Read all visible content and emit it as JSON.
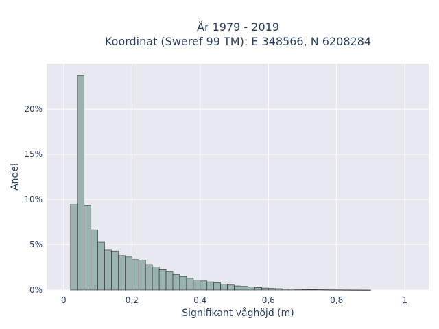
{
  "chart_data": {
    "type": "bar",
    "title_line1": "År 1979 - 2019",
    "title_line2": "Koordinat (Sweref 99 TM): E 348566, N 6208284",
    "xlabel": "Signifikant våghöjd (m)",
    "ylabel": "Andel",
    "xlim": [
      -0.05,
      1.07
    ],
    "ylim": [
      0,
      25
    ],
    "bin_width": 0.02,
    "bin_start": 0.0,
    "x_ticks": [
      0,
      0.2,
      0.4,
      0.6,
      0.8,
      1
    ],
    "x_tick_labels": [
      "0",
      "0,2",
      "0,4",
      "0,6",
      "0,8",
      "1"
    ],
    "y_ticks": [
      0,
      5,
      10,
      15,
      20
    ],
    "y_tick_labels": [
      "0%",
      "5%",
      "10%",
      "15%",
      "20%"
    ],
    "values": [
      0,
      9.5,
      23.7,
      9.35,
      6.65,
      5.3,
      4.4,
      4.3,
      3.8,
      3.65,
      3.35,
      3.3,
      2.8,
      2.55,
      2.25,
      2.0,
      1.7,
      1.5,
      1.3,
      1.1,
      1.0,
      0.9,
      0.8,
      0.65,
      0.55,
      0.45,
      0.4,
      0.33,
      0.28,
      0.22,
      0.18,
      0.15,
      0.12,
      0.1,
      0.08,
      0.06,
      0.05,
      0.04,
      0.03,
      0.025,
      0.02,
      0.015,
      0.01,
      0.008,
      0.005
    ],
    "colors": {
      "bar_fill": "#9ab3b1",
      "bar_stroke": "#2b2b2b",
      "plot_bg": "#e8e8f1",
      "grid": "#ffffff",
      "text": "#2a3f5f"
    }
  }
}
